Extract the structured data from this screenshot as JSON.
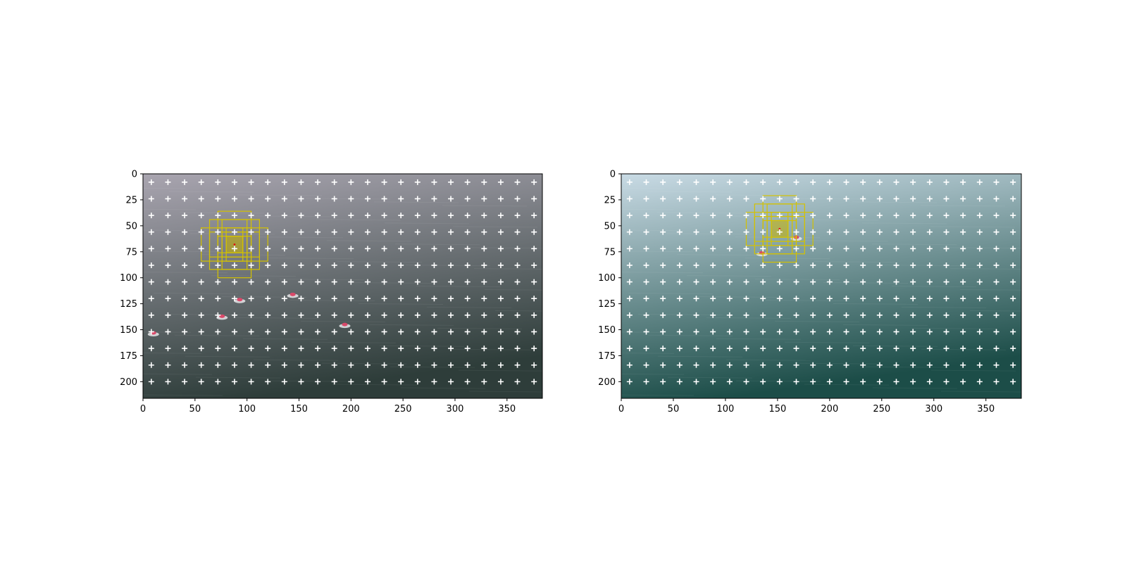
{
  "figure": {
    "background": "#ffffff",
    "panels": [
      {
        "id": "left",
        "scene": "aerial-sea-grey",
        "tint_top": "#a9a5b0",
        "tint_bottom": "#2e3d3a",
        "xlim": [
          0,
          384
        ],
        "ylim": [
          216,
          0
        ],
        "xticks": [
          0,
          50,
          100,
          150,
          200,
          250,
          300,
          350
        ],
        "yticks": [
          0,
          25,
          50,
          75,
          100,
          125,
          150,
          175,
          200
        ],
        "grid_marker": "white-plus",
        "grid_start": 8,
        "grid_step": 16,
        "anchor_center": [
          88,
          68
        ],
        "anchor_boxes": [
          {
            "w": 16,
            "h": 16
          },
          {
            "w": 24,
            "h": 24
          },
          {
            "w": 32,
            "h": 32
          },
          {
            "w": 48,
            "h": 48
          },
          {
            "w": 32,
            "h": 16
          },
          {
            "w": 16,
            "h": 32
          },
          {
            "w": 64,
            "h": 32
          },
          {
            "w": 32,
            "h": 64
          },
          {
            "w": 48,
            "h": 24
          },
          {
            "w": 24,
            "h": 48
          }
        ],
        "boats": [
          {
            "x": 93,
            "y": 121
          },
          {
            "x": 144,
            "y": 116
          },
          {
            "x": 76,
            "y": 137
          },
          {
            "x": 194,
            "y": 145
          },
          {
            "x": 10,
            "y": 153
          }
        ]
      },
      {
        "id": "right",
        "scene": "aerial-sea-teal",
        "tint_top": "#c9dbe5",
        "tint_bottom": "#1c4d48",
        "xlim": [
          0,
          384
        ],
        "ylim": [
          216,
          0
        ],
        "xticks": [
          0,
          50,
          100,
          150,
          200,
          250,
          300,
          350
        ],
        "yticks": [
          0,
          25,
          50,
          75,
          100,
          125,
          150,
          175,
          200
        ],
        "grid_marker": "white-plus",
        "grid_start": 8,
        "grid_step": 16,
        "anchor_center": [
          152,
          53
        ],
        "anchor_boxes": [
          {
            "w": 16,
            "h": 16
          },
          {
            "w": 24,
            "h": 24
          },
          {
            "w": 32,
            "h": 32
          },
          {
            "w": 48,
            "h": 48
          },
          {
            "w": 32,
            "h": 16
          },
          {
            "w": 16,
            "h": 32
          },
          {
            "w": 64,
            "h": 32
          },
          {
            "w": 32,
            "h": 64
          },
          {
            "w": 48,
            "h": 24
          },
          {
            "w": 24,
            "h": 48
          }
        ],
        "boats": [
          {
            "x": 168,
            "y": 61
          },
          {
            "x": 135,
            "y": 76
          }
        ]
      }
    ],
    "colors": {
      "anchor_box": "#d4c200",
      "anchor_fill": "#c8b400",
      "center_dot": "#e01010",
      "marker": "#ffffff",
      "boat": "#d94a6a",
      "axis": "#000000"
    }
  }
}
